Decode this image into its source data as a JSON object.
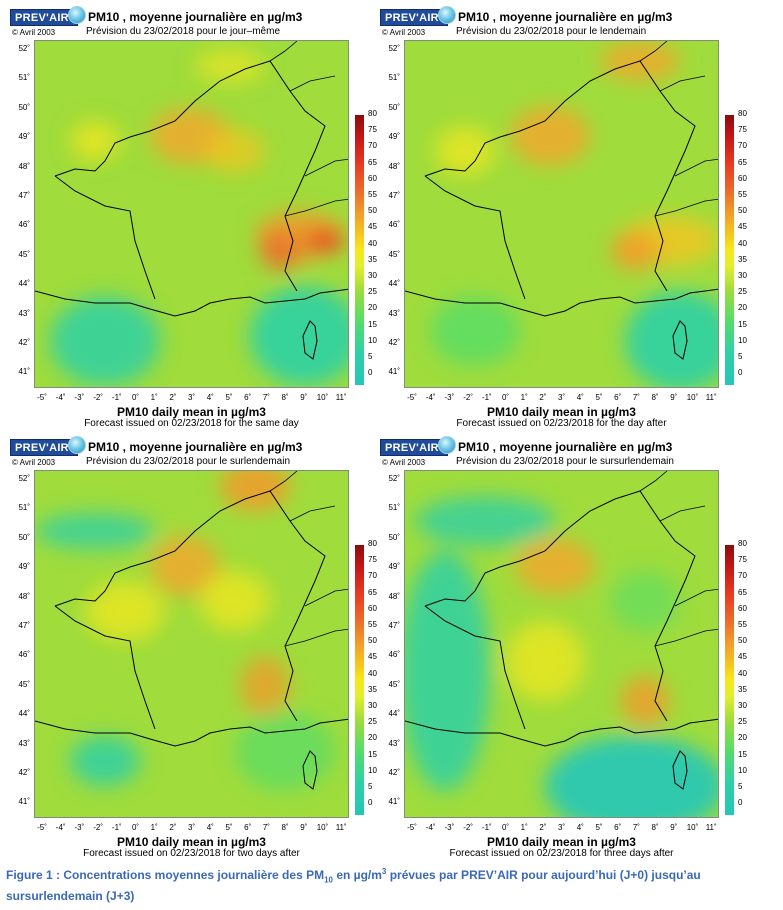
{
  "panels": [
    {
      "title": "PM10 , moyenne journalière en µg/m3",
      "copyright": "© Avril 2003",
      "prevision": "Prévision du 23/02/2018 pour le jour–même",
      "x_title": "PM10 daily mean in µg/m3",
      "forecast": "Forecast issued on 02/23/2018 for the same day"
    },
    {
      "title": "PM10 , moyenne journalière en µg/m3",
      "copyright": "© Avril 2003",
      "prevision": "Prévision du 23/02/2018 pour le lendemain",
      "x_title": "PM10 daily mean in µg/m3",
      "forecast": "Forecast issued on 02/23/2018 for the day after"
    },
    {
      "title": "PM10 , moyenne journalière en µg/m3",
      "copyright": "© Avril 2003",
      "prevision": "Prévision du 23/02/2018 pour le surlendemain",
      "x_title": "PM10 daily mean in µg/m3",
      "forecast": "Forecast issued on 02/23/2018 for two days after"
    },
    {
      "title": "PM10 , moyenne journalière en µg/m3",
      "copyright": "© Avril 2003",
      "prevision": "Prévision du 23/02/2018 pour le sursurlendemain",
      "x_title": "PM10 daily mean in µg/m3",
      "forecast": "Forecast issued on 02/23/2018 for three days after"
    }
  ],
  "logo_text": "PREV'AIR",
  "lat_ticks": [
    "52˚",
    "51˚",
    "50˚",
    "49˚",
    "48˚",
    "47˚",
    "46˚",
    "45˚",
    "44˚",
    "43˚",
    "42˚",
    "41˚"
  ],
  "lon_ticks": [
    "-5˚",
    "-4˚",
    "-3˚",
    "-2˚",
    "-1˚",
    "0˚",
    "1˚",
    "2˚",
    "3˚",
    "4˚",
    "5˚",
    "6˚",
    "7˚",
    "8˚",
    "9˚",
    "10˚",
    "11˚"
  ],
  "colorbar_ticks": [
    "80",
    "75",
    "70",
    "65",
    "60",
    "55",
    "50",
    "45",
    "40",
    "35",
    "30",
    "25",
    "20",
    "15",
    "10",
    "5",
    "0"
  ],
  "colorbar_colors": [
    "#23c6b9",
    "#55dd68",
    "#9fdc3c",
    "#f6e81a",
    "#f29a2a",
    "#e63a22",
    "#8a0d0d"
  ],
  "caption": {
    "part1": "Figure 1 : Concentrations moyennes journalière des PM",
    "sub": "10",
    "part2": " en µg/m",
    "sup": "3",
    "part3": " prévues par PREV’AIR pour aujourd’hui (J+0) jusqu’au sursurlendemain (J+3)"
  }
}
